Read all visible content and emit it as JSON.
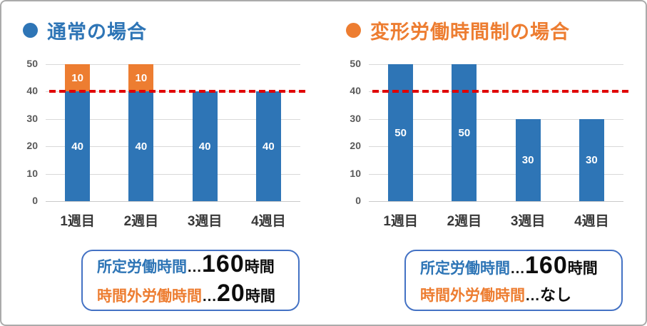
{
  "frame": {
    "background": "#ffffff",
    "border_color": "#ababab"
  },
  "colors": {
    "bar_blue": "#2e75b6",
    "bar_orange": "#ed7d31",
    "reference_red": "#e00000",
    "gridline": "#d9d9d9",
    "tick_label": "#595959",
    "x_label": "#383838",
    "value_label": "#ffffff",
    "box_border": "#4472c4"
  },
  "chart_data": [
    {
      "type": "bar",
      "stacked": true,
      "title": "通常の場合",
      "title_color": "#2e75b6",
      "categories": [
        "1週目",
        "2週目",
        "3週目",
        "4週目"
      ],
      "series": [
        {
          "name": "blue-segment",
          "color": "#2e75b6",
          "values": [
            40,
            40,
            40,
            40
          ],
          "label_color": "#ffffff"
        },
        {
          "name": "orange-segment",
          "color": "#ed7d31",
          "values": [
            10,
            10,
            0,
            0
          ],
          "label_color": "#ffffff"
        }
      ],
      "ylim": [
        0,
        50
      ],
      "y_ticks": [
        0,
        10,
        20,
        30,
        40,
        50
      ],
      "grid": true,
      "data_labels": "center",
      "legend": "none",
      "reference_line": {
        "value": 40,
        "color": "#e00000",
        "style": "dashed"
      },
      "summary_box": {
        "rows": [
          {
            "label": "所定労働時間",
            "label_color": "#2e75b6",
            "separator": "…",
            "value": "160",
            "value_emphasis": true,
            "suffix": "時間"
          },
          {
            "label": "時間外労働時間",
            "label_color": "#ed7d31",
            "separator": "…",
            "value": "20",
            "value_emphasis": true,
            "suffix": "時間"
          }
        ]
      }
    },
    {
      "type": "bar",
      "stacked": false,
      "title": "変形労働時間制の場合",
      "title_color": "#ed7d31",
      "categories": [
        "1週目",
        "2週目",
        "3週目",
        "4週目"
      ],
      "series": [
        {
          "name": "blue-segment",
          "color": "#2e75b6",
          "values": [
            50,
            50,
            30,
            30
          ],
          "label_color": "#ffffff"
        }
      ],
      "ylim": [
        0,
        50
      ],
      "y_ticks": [
        0,
        10,
        20,
        30,
        40,
        50
      ],
      "grid": true,
      "data_labels": "center",
      "legend": "none",
      "reference_line": {
        "value": 40,
        "color": "#e00000",
        "style": "dashed"
      },
      "summary_box": {
        "rows": [
          {
            "label": "所定労働時間",
            "label_color": "#2e75b6",
            "separator": "…",
            "value": "160",
            "value_emphasis": true,
            "suffix": "時間"
          },
          {
            "label": "時間外労働時間",
            "label_color": "#ed7d31",
            "separator": "…",
            "value": "なし",
            "value_emphasis": false,
            "suffix": ""
          }
        ]
      }
    }
  ]
}
